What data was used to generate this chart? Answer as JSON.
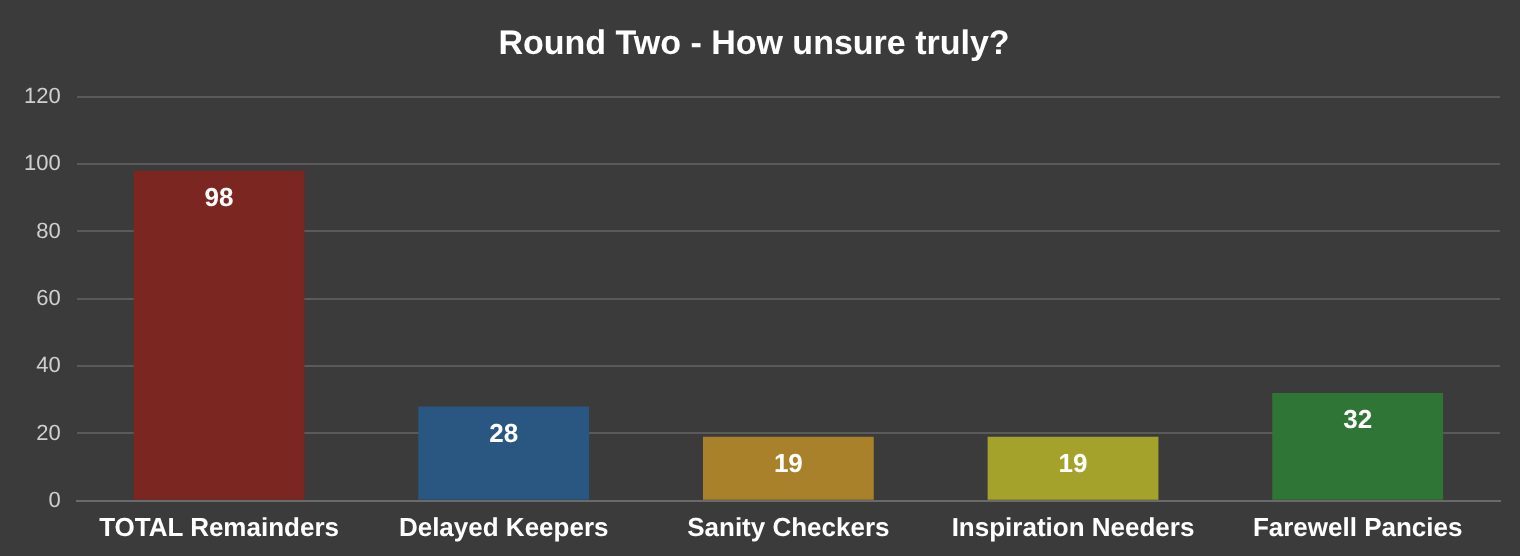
{
  "chart_data": {
    "type": "bar",
    "title": "Round Two - How unsure truly?",
    "categories": [
      "TOTAL Remainders",
      "Delayed Keepers",
      "Sanity Checkers",
      "Inspiration Needers",
      "Farewell Pancies"
    ],
    "values": [
      98,
      28,
      19,
      19,
      32
    ],
    "colors": [
      "#7b2620",
      "#2a5782",
      "#a9812b",
      "#a5a22c",
      "#2f7536"
    ],
    "ylim": [
      0,
      120
    ],
    "yticks": [
      0,
      20,
      40,
      60,
      80,
      100,
      120
    ],
    "grid": "y",
    "data_labels": true,
    "legend": false
  }
}
